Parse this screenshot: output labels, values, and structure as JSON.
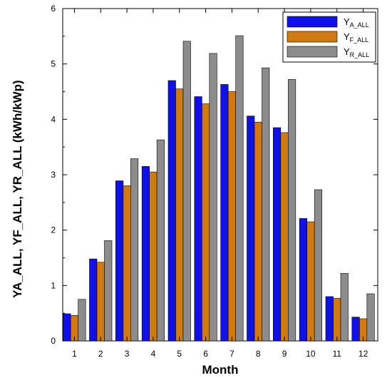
{
  "chart_data": {
    "type": "bar",
    "title": "",
    "xlabel": "Month",
    "ylabel": "YA_ALL, YF_ALL, YR_ALL (kWh/kWp)",
    "categories": [
      "1",
      "2",
      "3",
      "4",
      "5",
      "6",
      "7",
      "8",
      "9",
      "10",
      "11",
      "12"
    ],
    "ylim": [
      0,
      6
    ],
    "yticks": [
      0,
      1,
      2,
      3,
      4,
      5,
      6
    ],
    "grid": false,
    "legend_position": "top-right",
    "series": [
      {
        "name": "YA_ALL",
        "legend_main": "Y",
        "legend_sub": "A_ALL",
        "color": "#1010e8",
        "values": [
          0.49,
          1.48,
          2.89,
          3.15,
          4.7,
          4.41,
          4.63,
          4.06,
          3.85,
          2.21,
          0.8,
          0.43
        ]
      },
      {
        "name": "YF_ALL",
        "legend_main": "Y",
        "legend_sub": "F_ALL",
        "color": "#d07a10",
        "values": [
          0.46,
          1.42,
          2.8,
          3.05,
          4.55,
          4.28,
          4.5,
          3.95,
          3.76,
          2.15,
          0.77,
          0.4
        ]
      },
      {
        "name": "YR_ALL",
        "legend_main": "Y",
        "legend_sub": "R_ALL",
        "color": "#8c8c8c",
        "values": [
          0.75,
          1.81,
          3.29,
          3.63,
          5.41,
          5.19,
          5.51,
          4.93,
          4.72,
          2.73,
          1.22,
          0.85
        ]
      }
    ]
  }
}
